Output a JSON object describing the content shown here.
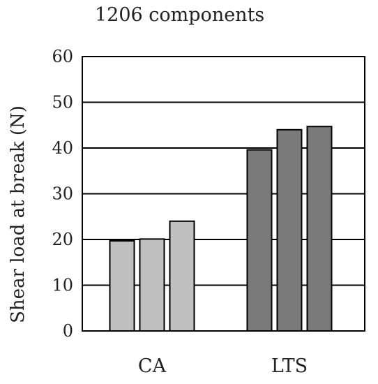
{
  "chart_data": {
    "type": "bar",
    "title": "1206 components",
    "xlabel": "",
    "ylabel": "Shear load at break (N)",
    "ylim": [
      0,
      60
    ],
    "yticks": [
      0,
      10,
      20,
      30,
      40,
      50,
      60
    ],
    "grid": true,
    "legend": "none",
    "groups": [
      {
        "label": "CA",
        "color": "#c0c0c0",
        "values": [
          19.7,
          20.1,
          24.0
        ]
      },
      {
        "label": "LTS",
        "color": "#7a7a7a",
        "values": [
          39.6,
          44.0,
          44.7
        ]
      }
    ]
  }
}
